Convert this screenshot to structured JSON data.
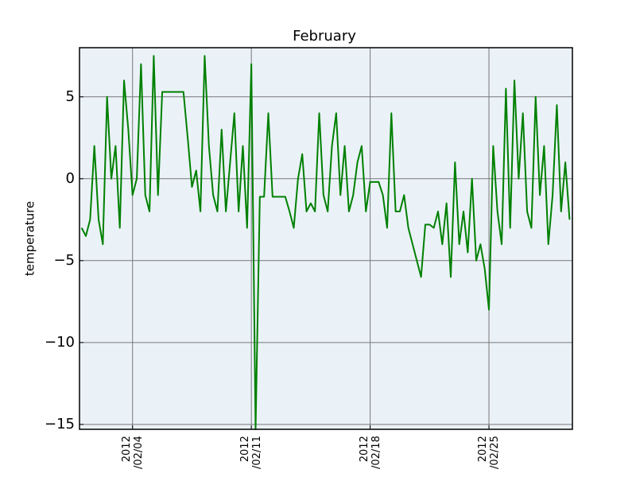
{
  "chart_data": {
    "type": "line",
    "title": "February",
    "y_label": "temperature",
    "x": [
      "2012-02-01T00:00",
      "2012-02-01T06:00",
      "2012-02-01T12:00",
      "2012-02-01T18:00",
      "2012-02-02T00:00",
      "2012-02-02T06:00",
      "2012-02-02T12:00",
      "2012-02-02T18:00",
      "2012-02-03T00:00",
      "2012-02-03T06:00",
      "2012-02-03T12:00",
      "2012-02-03T18:00",
      "2012-02-04T00:00",
      "2012-02-04T06:00",
      "2012-02-04T12:00",
      "2012-02-04T18:00",
      "2012-02-05T00:00",
      "2012-02-05T06:00",
      "2012-02-05T12:00",
      "2012-02-05T18:00",
      "2012-02-06T00:00",
      "2012-02-06T06:00",
      "2012-02-06T12:00",
      "2012-02-06T18:00",
      "2012-02-07T00:00",
      "2012-02-07T06:00",
      "2012-02-07T12:00",
      "2012-02-07T18:00",
      "2012-02-08T00:00",
      "2012-02-08T06:00",
      "2012-02-08T12:00",
      "2012-02-08T18:00",
      "2012-02-09T00:00",
      "2012-02-09T06:00",
      "2012-02-09T12:00",
      "2012-02-09T18:00",
      "2012-02-10T00:00",
      "2012-02-10T06:00",
      "2012-02-10T12:00",
      "2012-02-10T18:00",
      "2012-02-11T00:00",
      "2012-02-11T06:00",
      "2012-02-11T12:00",
      "2012-02-11T18:00",
      "2012-02-12T00:00",
      "2012-02-12T06:00",
      "2012-02-12T12:00",
      "2012-02-12T18:00",
      "2012-02-13T00:00",
      "2012-02-13T06:00",
      "2012-02-13T12:00",
      "2012-02-13T18:00",
      "2012-02-14T00:00",
      "2012-02-14T06:00",
      "2012-02-14T12:00",
      "2012-02-14T18:00",
      "2012-02-15T00:00",
      "2012-02-15T06:00",
      "2012-02-15T12:00",
      "2012-02-15T18:00",
      "2012-02-16T00:00",
      "2012-02-16T06:00",
      "2012-02-16T12:00",
      "2012-02-16T18:00",
      "2012-02-17T00:00",
      "2012-02-17T06:00",
      "2012-02-17T12:00",
      "2012-02-17T18:00",
      "2012-02-18T00:00",
      "2012-02-18T06:00",
      "2012-02-18T12:00",
      "2012-02-18T18:00",
      "2012-02-19T00:00",
      "2012-02-19T06:00",
      "2012-02-19T12:00",
      "2012-02-19T18:00",
      "2012-02-20T00:00",
      "2012-02-20T06:00",
      "2012-02-20T12:00",
      "2012-02-20T18:00",
      "2012-02-21T00:00",
      "2012-02-21T06:00",
      "2012-02-21T12:00",
      "2012-02-21T18:00",
      "2012-02-22T00:00",
      "2012-02-22T06:00",
      "2012-02-22T12:00",
      "2012-02-22T18:00",
      "2012-02-23T00:00",
      "2012-02-23T06:00",
      "2012-02-23T12:00",
      "2012-02-23T18:00",
      "2012-02-24T00:00",
      "2012-02-24T06:00",
      "2012-02-24T12:00",
      "2012-02-24T18:00",
      "2012-02-25T00:00",
      "2012-02-25T06:00",
      "2012-02-25T12:00",
      "2012-02-25T18:00",
      "2012-02-26T00:00",
      "2012-02-26T06:00",
      "2012-02-26T12:00",
      "2012-02-26T18:00",
      "2012-02-27T00:00",
      "2012-02-27T06:00",
      "2012-02-27T12:00",
      "2012-02-27T18:00",
      "2012-02-28T00:00",
      "2012-02-28T06:00",
      "2012-02-28T12:00",
      "2012-02-28T18:00",
      "2012-02-29T00:00",
      "2012-02-29T06:00",
      "2012-02-29T12:00",
      "2012-02-29T18:00"
    ],
    "series": [
      {
        "color": "#008000",
        "values": [
          -3,
          -3.5,
          -2.5,
          2,
          -2.5,
          -4,
          5,
          0,
          2,
          -3,
          6,
          3,
          -1,
          0,
          7,
          -1,
          -2,
          7.5,
          -1,
          5.3,
          5.3,
          5.3,
          5.3,
          5.3,
          5.3,
          2.5,
          -0.5,
          0.5,
          -2,
          7.5,
          2,
          -1,
          -2,
          3,
          -2,
          1,
          4,
          -2,
          2,
          -3,
          7,
          -15.3,
          -1.1,
          -1.1,
          4,
          -1.1,
          -1.1,
          -1.1,
          -1.1,
          -2,
          -3,
          0,
          1.5,
          -2,
          -1.5,
          -2,
          4,
          -1,
          -2,
          2,
          4,
          -1,
          2,
          -2,
          -1,
          1,
          2,
          -2,
          -0.2,
          -0.2,
          -0.2,
          -1,
          -3,
          4,
          -2,
          -2,
          -1,
          -3,
          -4,
          -5,
          -6,
          -2.8,
          -2.8,
          -3,
          -2,
          -4,
          -1.5,
          -6,
          1,
          -4,
          -2,
          -4.5,
          0,
          -5,
          -4,
          -5.5,
          -8,
          2,
          -2,
          -4,
          5.5,
          -3,
          6,
          0,
          4,
          -2,
          -3,
          5,
          -1,
          2,
          -4,
          -1,
          4.5,
          -2,
          1,
          -2.5
        ]
      }
    ],
    "xlim": [
      "2012-01-31T21:00",
      "2012-02-29T22:00"
    ],
    "xticks": [
      {
        "value": "2012-02-04T00:00",
        "label": "2012\n/02/04"
      },
      {
        "value": "2012-02-11T00:00",
        "label": "2012\n/02/11"
      },
      {
        "value": "2012-02-18T00:00",
        "label": "2012\n/02/18"
      },
      {
        "value": "2012-02-25T00:00",
        "label": "2012\n/02/25"
      }
    ],
    "ylim": [
      -15.3,
      8
    ],
    "yticks": [
      {
        "value": -15,
        "label": "−15"
      },
      {
        "value": -10,
        "label": "−10"
      },
      {
        "value": -5,
        "label": "−5"
      },
      0,
      5
    ],
    "grid": true
  }
}
